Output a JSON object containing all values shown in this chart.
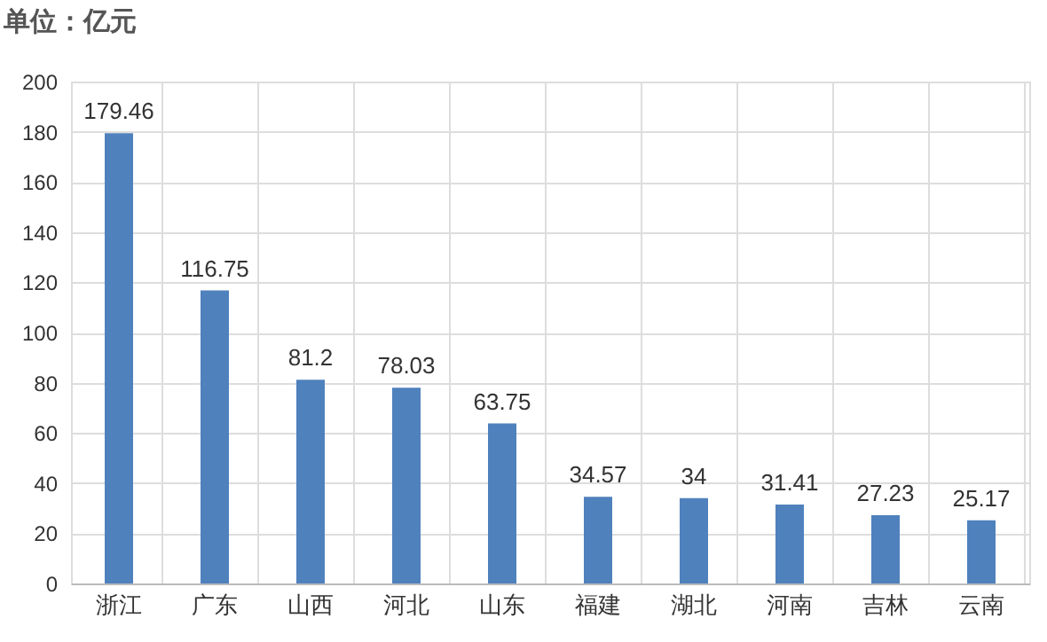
{
  "chart_data": {
    "type": "bar",
    "title": "单位：亿元",
    "categories": [
      "浙江",
      "广东",
      "山西",
      "河北",
      "山东",
      "福建",
      "湖北",
      "河南",
      "吉林",
      "云南"
    ],
    "values": [
      179.46,
      116.75,
      81.2,
      78.03,
      63.75,
      34.57,
      34,
      31.41,
      27.23,
      25.17
    ],
    "color": "#4f81bd",
    "ylim": [
      0,
      200
    ],
    "yticks": [
      0,
      20,
      40,
      60,
      80,
      100,
      120,
      140,
      160,
      180,
      200
    ],
    "grid": true,
    "data_labels": true
  }
}
